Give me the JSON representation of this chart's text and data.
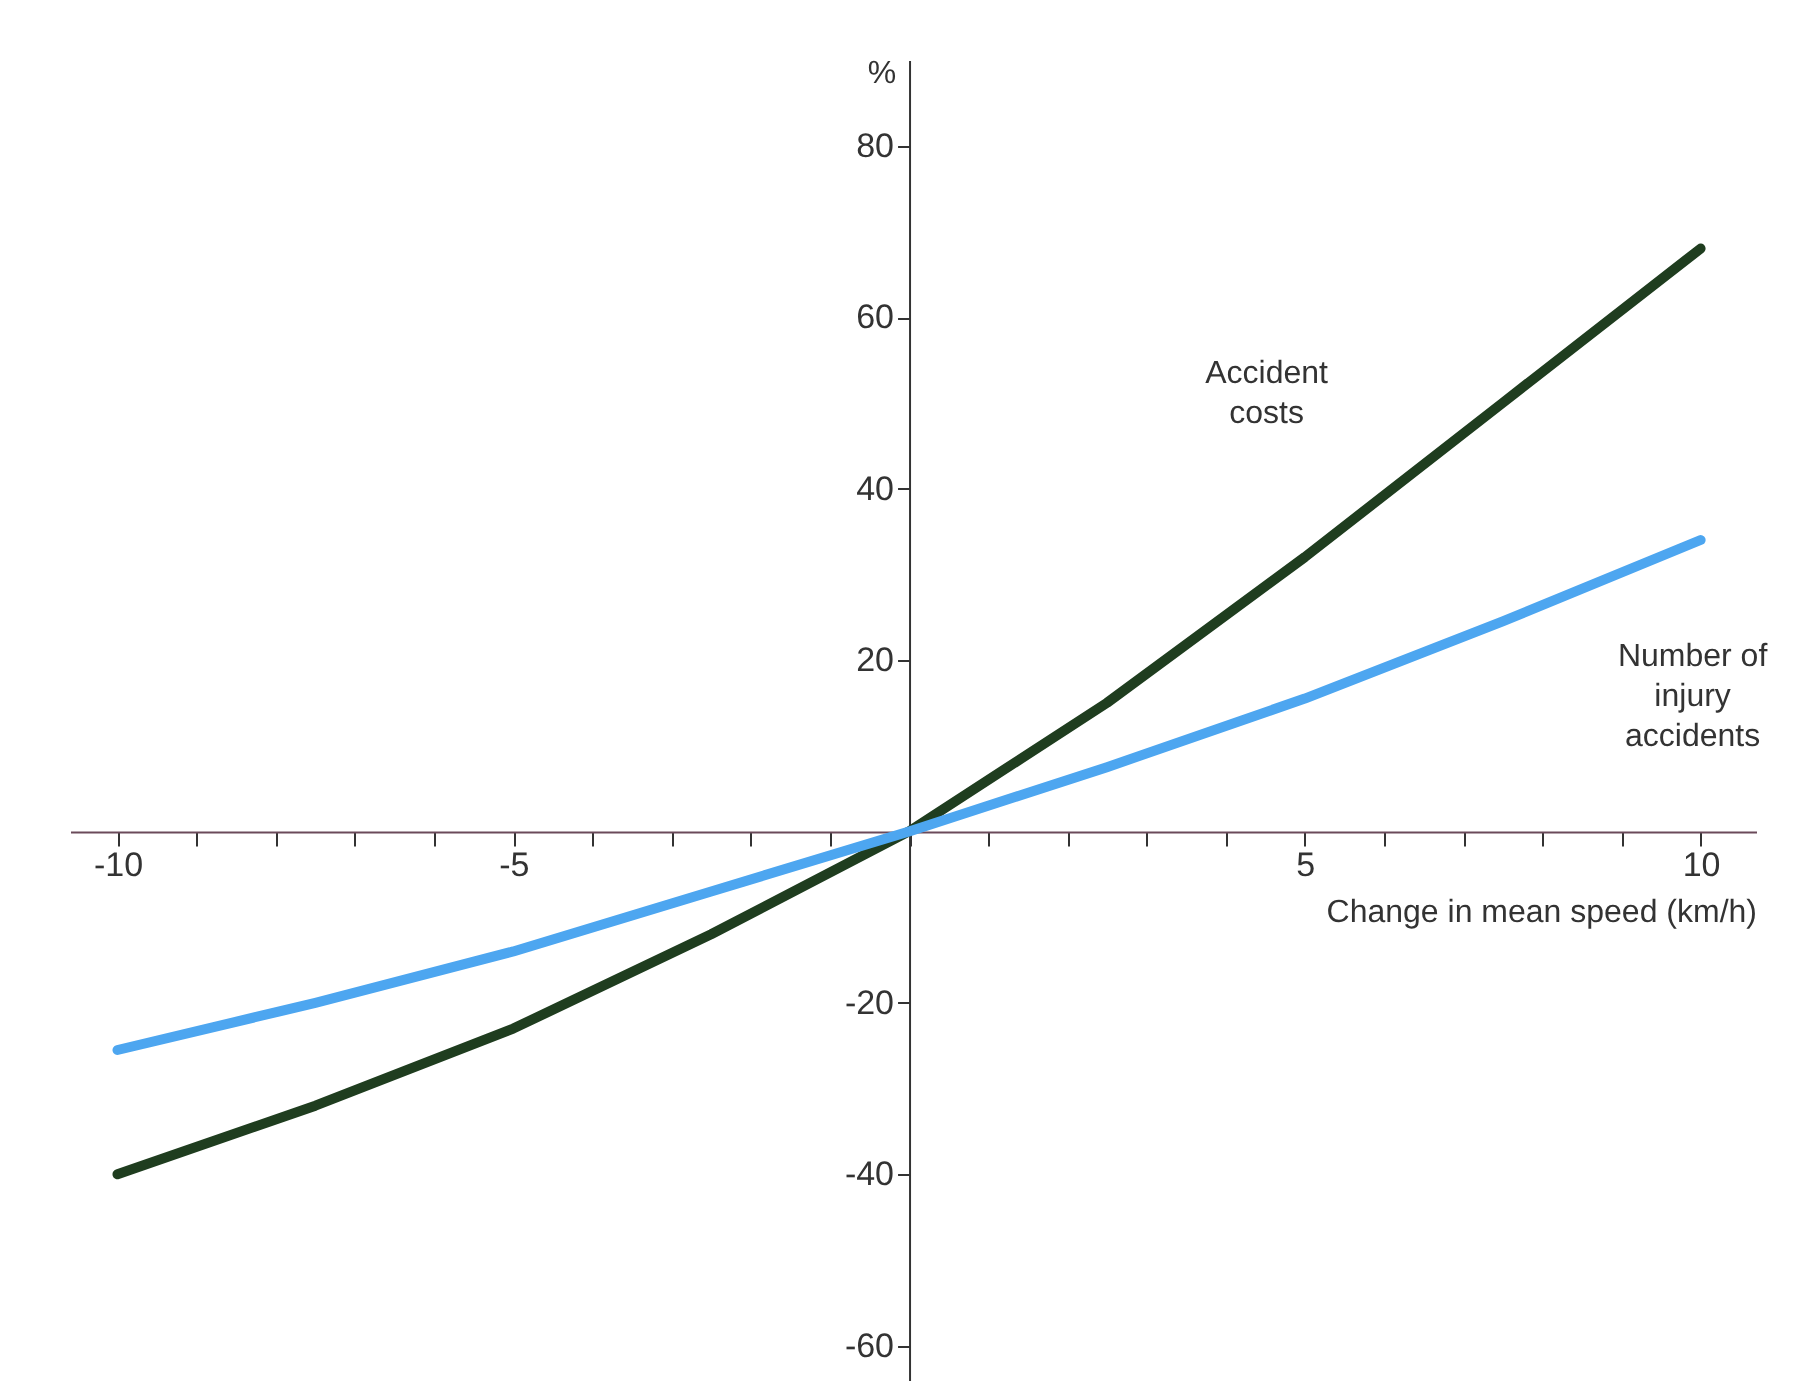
{
  "chart_data": {
    "type": "line",
    "xlabel": "Change in mean speed (km/h)",
    "ylabel": "%",
    "x": [
      -10,
      -7.5,
      -5,
      -2.5,
      0,
      2.5,
      5,
      7.5,
      10
    ],
    "series": [
      {
        "name": "Accident costs",
        "color": "#1f3d1f",
        "values": [
          -40,
          -32,
          -23,
          -12,
          0,
          15,
          32,
          50,
          68
        ]
      },
      {
        "name": "Number of injury accidents",
        "color": "#4da6f0",
        "values": [
          -25.5,
          -20,
          -14,
          -7,
          0,
          7.5,
          15.5,
          24.5,
          34
        ]
      }
    ],
    "xlim": [
      -10.6,
      10.7
    ],
    "ylim": [
      -64,
      90
    ],
    "xticks": [
      -10,
      {
        "value": -9,
        "label": null
      },
      {
        "value": -8,
        "label": null
      },
      {
        "value": -7,
        "label": null
      },
      {
        "value": -6,
        "label": null
      },
      -5,
      {
        "value": -4,
        "label": null
      },
      {
        "value": -3,
        "label": null
      },
      {
        "value": -2,
        "label": null
      },
      {
        "value": -1,
        "label": null
      },
      {
        "value": 0,
        "label": null
      },
      {
        "value": 1,
        "label": null
      },
      {
        "value": 2,
        "label": null
      },
      {
        "value": 3,
        "label": null
      },
      {
        "value": 4,
        "label": null
      },
      5,
      {
        "value": 6,
        "label": null
      },
      {
        "value": 7,
        "label": null
      },
      {
        "value": 8,
        "label": null
      },
      {
        "value": 9,
        "label": null
      },
      10
    ],
    "yticks": [
      -60,
      -40,
      -20,
      {
        "value": 0,
        "label": null
      },
      20,
      40,
      60,
      80
    ],
    "grid": false,
    "marker": "none",
    "line_style": "solid"
  }
}
